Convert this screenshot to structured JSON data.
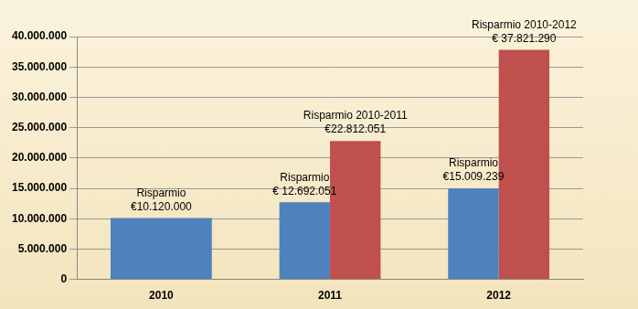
{
  "chart_data": {
    "type": "bar",
    "categories": [
      "2010",
      "2011",
      "2012"
    ],
    "series": [
      {
        "color": "#4f81bd",
        "values": [
          10120000,
          12692051,
          15009239
        ],
        "label_titles": [
          "Risparmio",
          "Risparmio",
          "Risparmio"
        ],
        "value_labels": [
          "€10.120.000",
          "€ 12.692.051",
          "€15.009.239"
        ]
      },
      {
        "color": "#c0504d",
        "values": [
          null,
          22812051,
          37821290
        ],
        "label_titles": [
          null,
          "Risparmio 2010-2011",
          "Risparmio 2010-2012"
        ],
        "value_labels": [
          null,
          "€22.812.051",
          "€ 37.821.290"
        ]
      }
    ],
    "ylim": [
      0,
      40000000
    ],
    "yticks": [
      {
        "value": 0,
        "label": "0"
      },
      {
        "value": 5000000,
        "label": "5.000.000"
      },
      {
        "value": 10000000,
        "label": "10.000.000"
      },
      {
        "value": 15000000,
        "label": "15.000.000"
      },
      {
        "value": 20000000,
        "label": "20.000.000"
      },
      {
        "value": 25000000,
        "label": "25.000.000"
      },
      {
        "value": 30000000,
        "label": "30.000.000"
      },
      {
        "value": 35000000,
        "label": "35.000.000"
      },
      {
        "value": 40000000,
        "label": "40.000.000"
      }
    ],
    "grid": true,
    "data_labels": true
  }
}
